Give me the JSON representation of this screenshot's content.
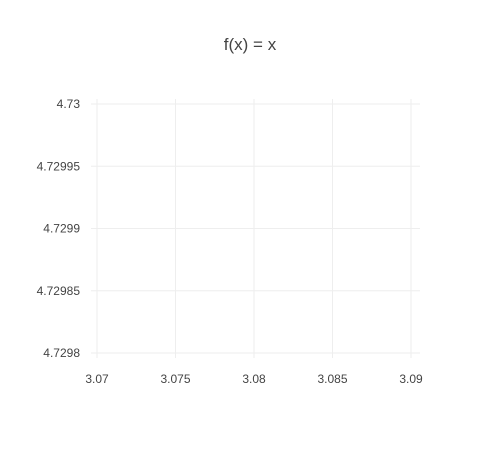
{
  "chart_data": {
    "type": "line",
    "title": "f(x) = x",
    "xlabel": "",
    "ylabel": "",
    "xlim": [
      3.07,
      3.09
    ],
    "ylim": [
      4.7298,
      4.73
    ],
    "x_ticks": [
      "3.07",
      "3.075",
      "3.08",
      "3.085",
      "3.09"
    ],
    "x_tick_values": [
      3.07,
      3.075,
      3.08,
      3.085,
      3.09
    ],
    "y_ticks": [
      "4.73",
      "4.72995",
      "4.7299",
      "4.72985",
      "4.7298"
    ],
    "y_tick_values": [
      4.73,
      4.72995,
      4.7299,
      4.72985,
      4.7298
    ],
    "grid": true,
    "series": [
      {
        "x": [],
        "y": []
      }
    ]
  }
}
